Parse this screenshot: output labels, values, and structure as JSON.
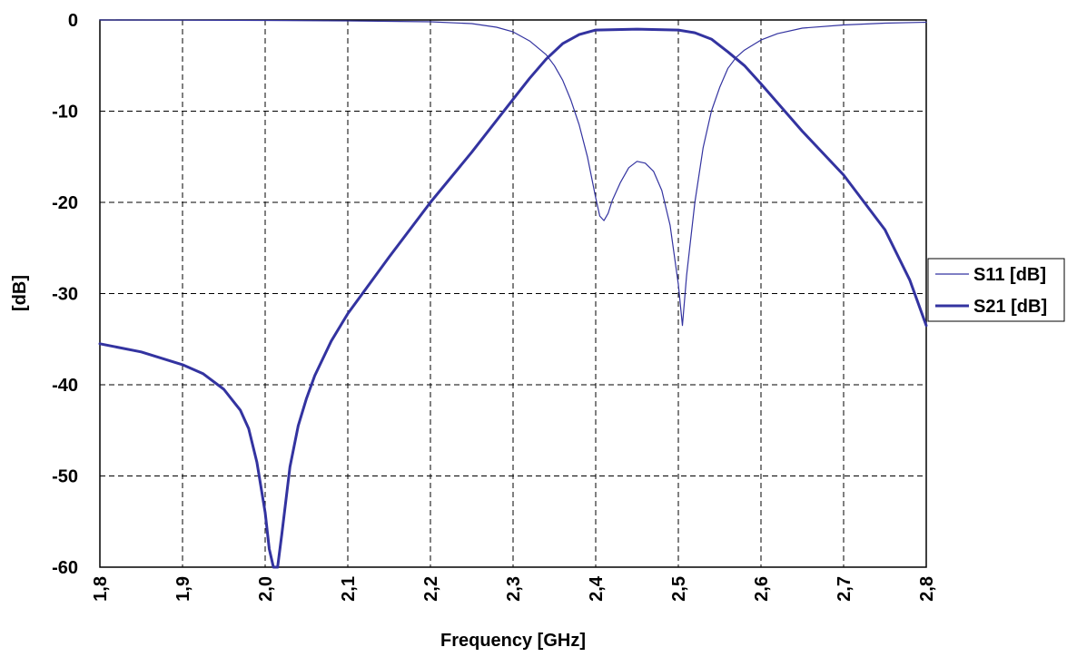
{
  "chart_data": {
    "type": "line",
    "xlabel": "Frequency [GHz]",
    "ylabel": "[dB]",
    "xlim": [
      1.8,
      2.8
    ],
    "ylim": [
      -60,
      0
    ],
    "x_ticks": [
      "1,8",
      "1,9",
      "2,0",
      "2,1",
      "2,2",
      "2,3",
      "2,4",
      "2,5",
      "2,6",
      "2,7",
      "2,8"
    ],
    "y_ticks": [
      "0",
      "-10",
      "-20",
      "-30",
      "-40",
      "-50",
      "-60"
    ],
    "grid": true,
    "legend_position": "right",
    "series_color": "#3333a0",
    "series": [
      {
        "name": "S11 [dB]",
        "style": "thin",
        "points": [
          [
            1.8,
            0
          ],
          [
            1.9,
            -0.02
          ],
          [
            2.0,
            -0.05
          ],
          [
            2.1,
            -0.1
          ],
          [
            2.2,
            -0.2
          ],
          [
            2.25,
            -0.4
          ],
          [
            2.28,
            -0.8
          ],
          [
            2.3,
            -1.3
          ],
          [
            2.32,
            -2.3
          ],
          [
            2.34,
            -3.8
          ],
          [
            2.35,
            -5
          ],
          [
            2.36,
            -6.6
          ],
          [
            2.37,
            -8.8
          ],
          [
            2.38,
            -11.5
          ],
          [
            2.39,
            -15
          ],
          [
            2.4,
            -19.5
          ],
          [
            2.405,
            -21.5
          ],
          [
            2.41,
            -22
          ],
          [
            2.415,
            -21.2
          ],
          [
            2.42,
            -19.8
          ],
          [
            2.43,
            -17.8
          ],
          [
            2.44,
            -16.2
          ],
          [
            2.45,
            -15.5
          ],
          [
            2.46,
            -15.7
          ],
          [
            2.47,
            -16.6
          ],
          [
            2.48,
            -18.7
          ],
          [
            2.49,
            -22.5
          ],
          [
            2.5,
            -29
          ],
          [
            2.505,
            -33.5
          ],
          [
            2.51,
            -28
          ],
          [
            2.52,
            -20
          ],
          [
            2.53,
            -14
          ],
          [
            2.54,
            -10
          ],
          [
            2.55,
            -7.4
          ],
          [
            2.56,
            -5.3
          ],
          [
            2.57,
            -4.1
          ],
          [
            2.58,
            -3.3
          ],
          [
            2.6,
            -2.2
          ],
          [
            2.62,
            -1.5
          ],
          [
            2.65,
            -0.9
          ],
          [
            2.7,
            -0.55
          ],
          [
            2.75,
            -0.35
          ],
          [
            2.8,
            -0.25
          ]
        ]
      },
      {
        "name": "S21 [dB]",
        "style": "thick",
        "points": [
          [
            1.8,
            -35.5
          ],
          [
            1.85,
            -36.4
          ],
          [
            1.9,
            -37.8
          ],
          [
            1.925,
            -38.8
          ],
          [
            1.95,
            -40.5
          ],
          [
            1.97,
            -42.8
          ],
          [
            1.98,
            -44.8
          ],
          [
            1.99,
            -48.5
          ],
          [
            2.0,
            -54
          ],
          [
            2.005,
            -58
          ],
          [
            2.01,
            -60
          ],
          [
            2.015,
            -60
          ],
          [
            2.02,
            -56.5
          ],
          [
            2.03,
            -49
          ],
          [
            2.04,
            -44.5
          ],
          [
            2.05,
            -41.5
          ],
          [
            2.06,
            -39
          ],
          [
            2.08,
            -35.2
          ],
          [
            2.1,
            -32.2
          ],
          [
            2.15,
            -26
          ],
          [
            2.2,
            -20
          ],
          [
            2.25,
            -14.5
          ],
          [
            2.3,
            -8.7
          ],
          [
            2.32,
            -6.4
          ],
          [
            2.34,
            -4.3
          ],
          [
            2.36,
            -2.6
          ],
          [
            2.38,
            -1.6
          ],
          [
            2.4,
            -1.1
          ],
          [
            2.45,
            -1.0
          ],
          [
            2.5,
            -1.1
          ],
          [
            2.52,
            -1.4
          ],
          [
            2.54,
            -2.1
          ],
          [
            2.56,
            -3.5
          ],
          [
            2.58,
            -5.0
          ],
          [
            2.6,
            -7.0
          ],
          [
            2.65,
            -12.2
          ],
          [
            2.7,
            -17.0
          ],
          [
            2.75,
            -23.0
          ],
          [
            2.78,
            -28.5
          ],
          [
            2.8,
            -33.5
          ]
        ]
      }
    ]
  }
}
